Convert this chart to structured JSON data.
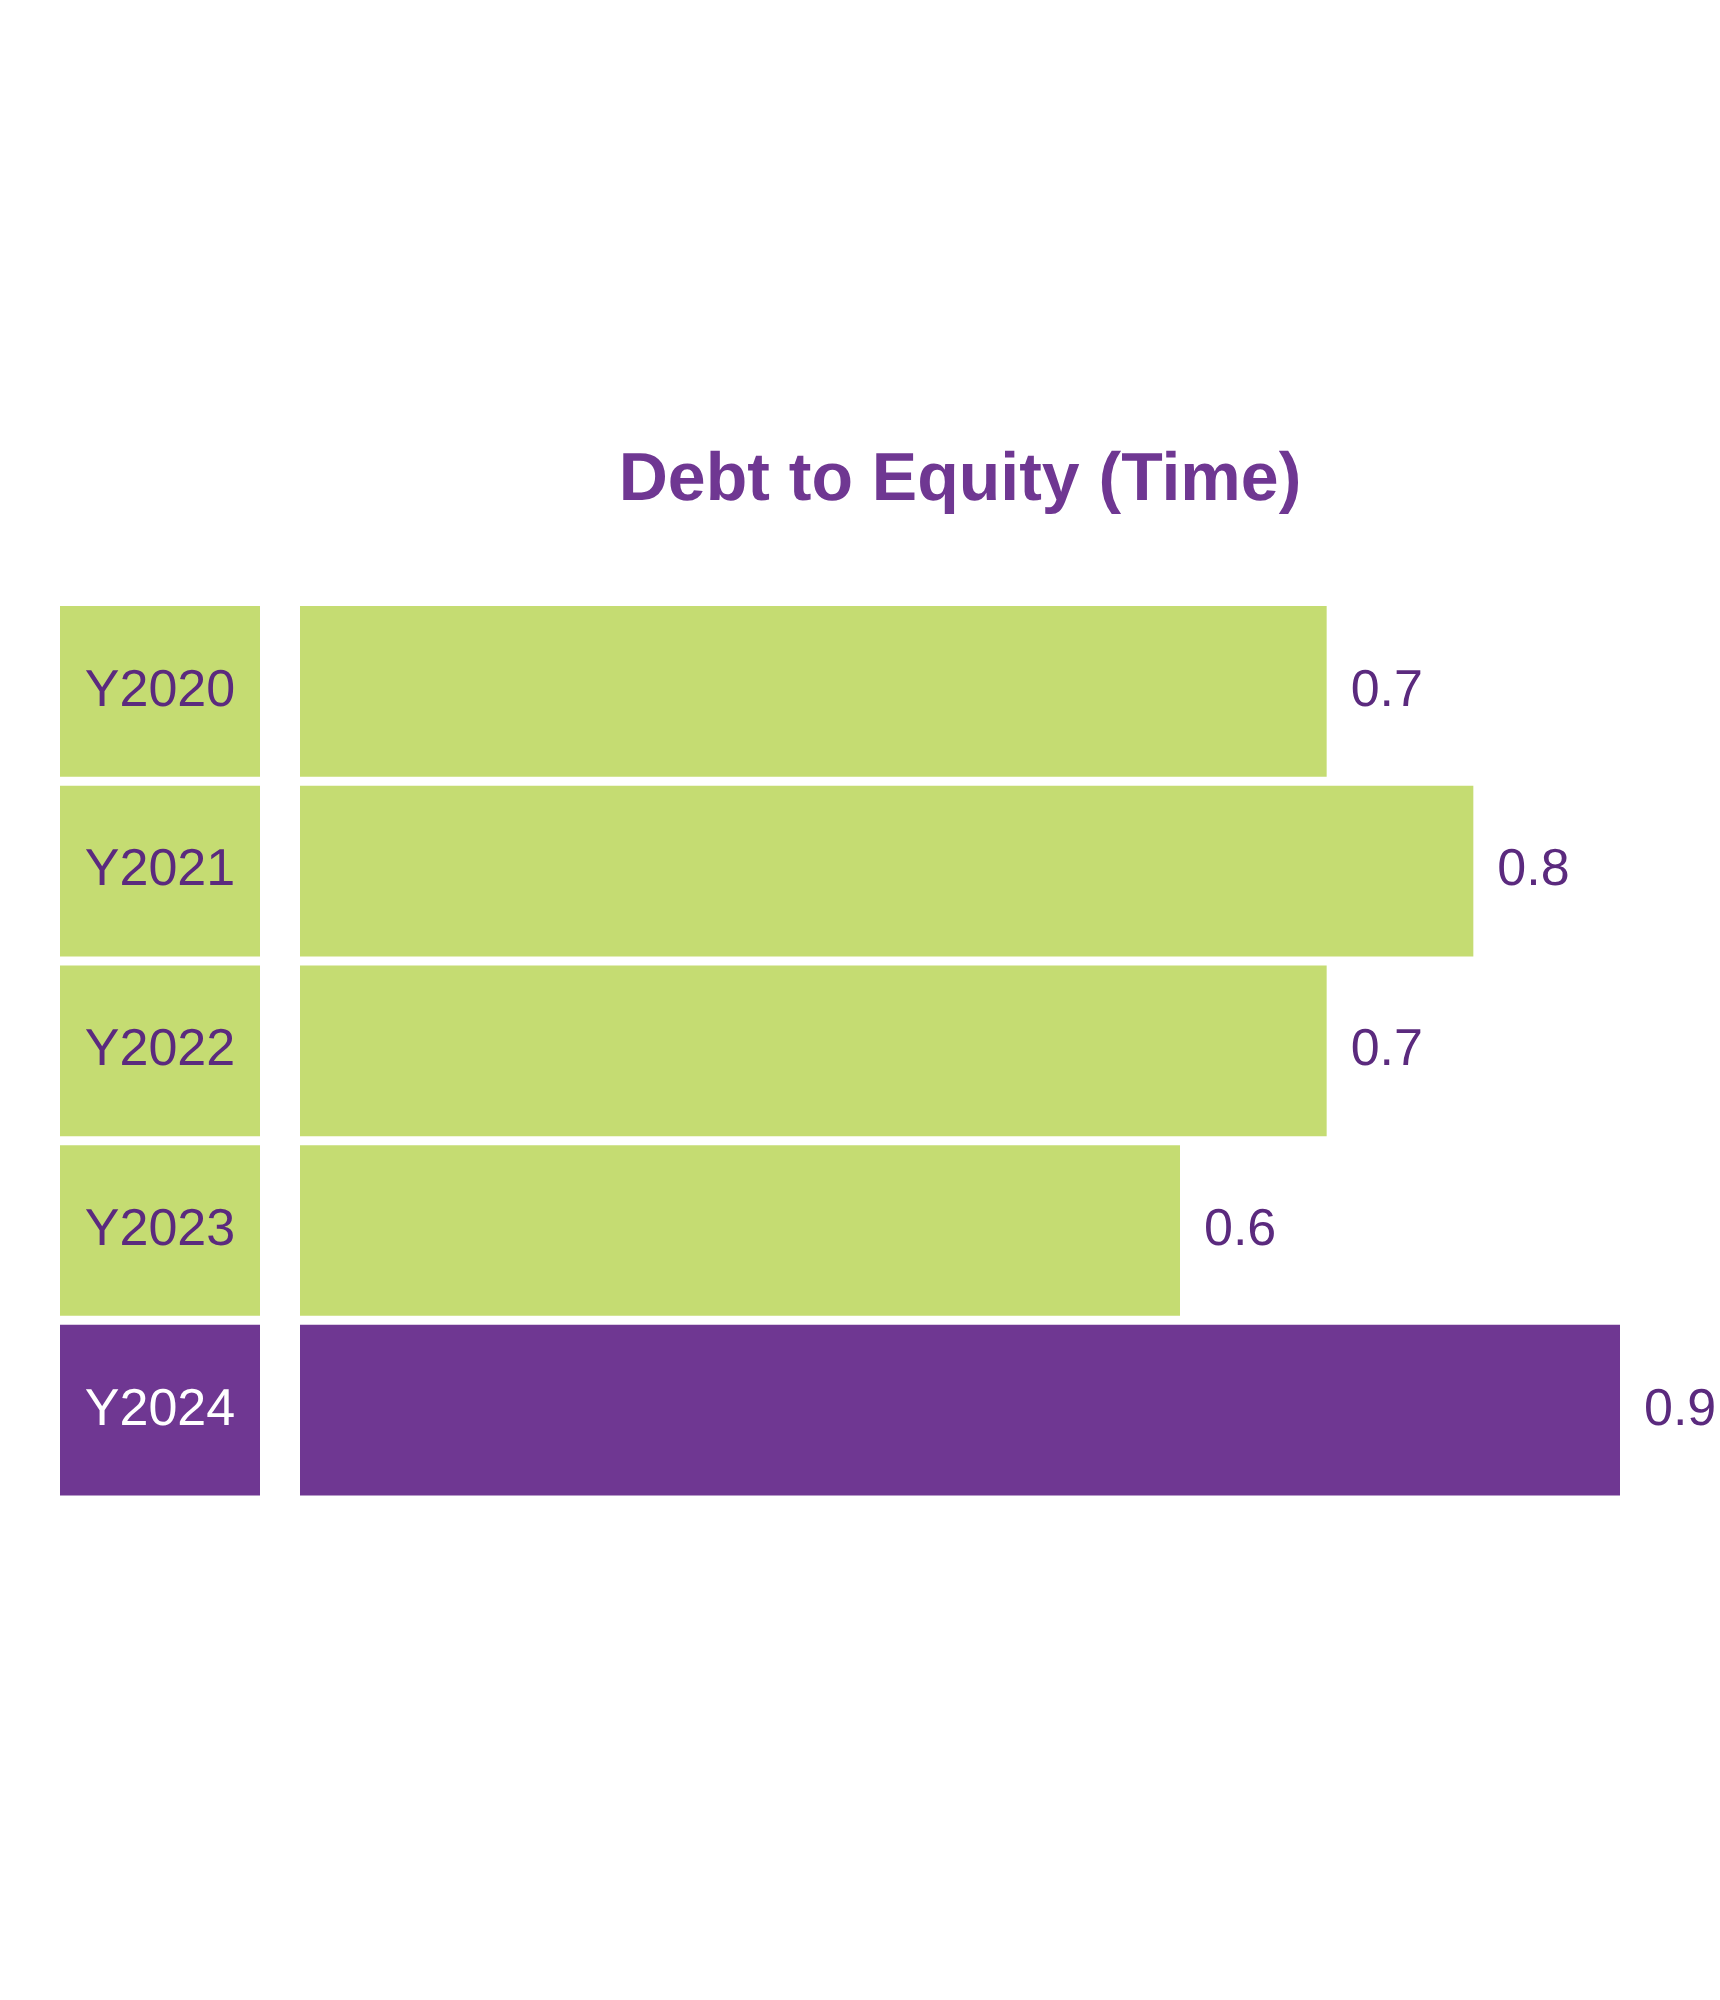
{
  "chart_data": {
    "type": "bar",
    "orientation": "horizontal",
    "title": "Debt to Equity (Time)",
    "categories": [
      "Y2020",
      "Y2021",
      "Y2022",
      "Y2023",
      "Y2024"
    ],
    "values": [
      0.7,
      0.8,
      0.7,
      0.6,
      0.9
    ],
    "colors": [
      "#c5dc72",
      "#c5dc72",
      "#c5dc72",
      "#c5dc72",
      "#6f3792"
    ],
    "data_labels": true,
    "legend": false
  }
}
